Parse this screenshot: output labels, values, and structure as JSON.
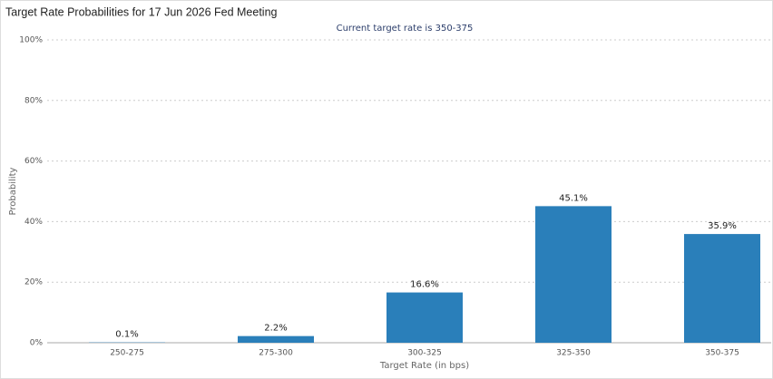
{
  "chart_data": {
    "type": "bar",
    "title": "Target Rate Probabilities for 17 Jun 2026 Fed Meeting",
    "subtitle": "Current target rate is 350-375",
    "x_label": "Target Rate (in bps)",
    "y_label": "Probability",
    "categories": [
      "250-275",
      "275-300",
      "300-325",
      "325-350",
      "350-375"
    ],
    "values": [
      0.1,
      2.2,
      16.6,
      45.1,
      35.9
    ],
    "value_labels": [
      "0.1%",
      "2.2%",
      "16.6%",
      "45.1%",
      "35.9%"
    ],
    "color": "#2a7fba",
    "ylim": [
      0,
      100
    ],
    "yticks": [
      {
        "value": 0,
        "label": "0%"
      },
      {
        "value": 20,
        "label": "20%"
      },
      {
        "value": 40,
        "label": "40%"
      },
      {
        "value": 60,
        "label": "60%"
      },
      {
        "value": 80,
        "label": "80%"
      },
      {
        "value": 100,
        "label": "100%"
      }
    ],
    "grid": true
  }
}
